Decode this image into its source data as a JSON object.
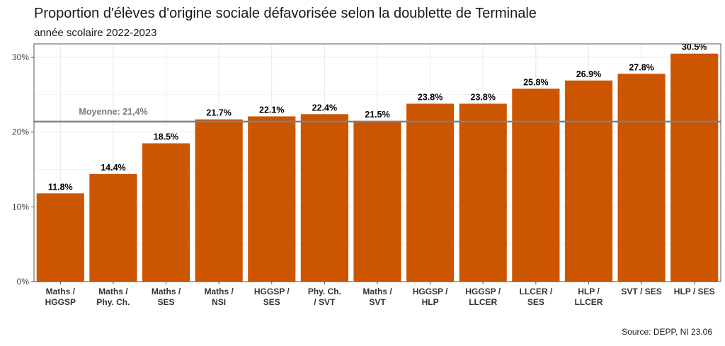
{
  "header": {
    "title": "Proportion d'élèves d'origine sociale défavorisée selon la doublette de Terminale",
    "subtitle": "année scolaire 2022-2023"
  },
  "caption": "Source: DEPP, NI 23.06",
  "colors": {
    "bar": "#cc5500",
    "reference_line": "#808080",
    "grid": "#e8e8e8",
    "panel_border": "#555555"
  },
  "chart_data": {
    "type": "bar",
    "title": "Proportion d'élèves d'origine sociale défavorisée selon la doublette de Terminale",
    "subtitle": "année scolaire 2022-2023",
    "xlabel": "",
    "ylabel": "",
    "categories": [
      [
        "Maths /",
        "HGGSP"
      ],
      [
        "Maths /",
        "Phy. Ch."
      ],
      [
        "Maths /",
        "SES"
      ],
      [
        "Maths /",
        "NSI"
      ],
      [
        "HGGSP /",
        "SES"
      ],
      [
        "Phy. Ch.",
        "/ SVT"
      ],
      [
        "Maths /",
        "SVT"
      ],
      [
        "HGGSP /",
        "HLP"
      ],
      [
        "HGGSP /",
        "LLCER"
      ],
      [
        "LLCER /",
        "SES"
      ],
      [
        "HLP /",
        "LLCER"
      ],
      [
        "SVT / SES"
      ],
      [
        "HLP / SES"
      ]
    ],
    "values": [
      11.8,
      14.4,
      18.5,
      21.7,
      22.1,
      22.4,
      21.5,
      23.8,
      23.8,
      25.8,
      26.9,
      27.8,
      30.5
    ],
    "value_labels": [
      "11.8%",
      "14.4%",
      "18.5%",
      "21.7%",
      "22.1%",
      "22.4%",
      "21.5%",
      "23.8%",
      "23.8%",
      "25.8%",
      "26.9%",
      "27.8%",
      "30.5%"
    ],
    "ylim": [
      0,
      31.8
    ],
    "yticks": [
      0,
      10,
      20,
      30
    ],
    "ytick_labels": [
      "0%",
      "10%",
      "20%",
      "30%"
    ],
    "grid": true,
    "reference_line": {
      "value": 21.4,
      "label": "Moyenne: 21,4%"
    }
  }
}
